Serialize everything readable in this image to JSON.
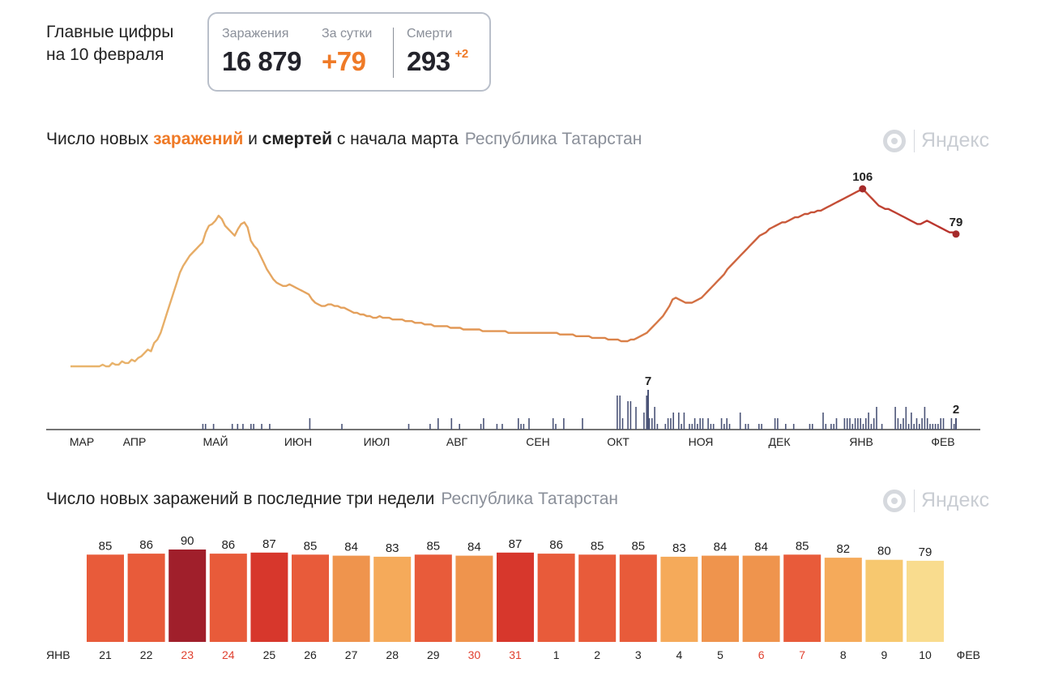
{
  "headline": {
    "line1": "Главные цифры",
    "line2": "на 10 февраля"
  },
  "stats": {
    "infections_label": "Заражения",
    "infections_value": "16 879",
    "daily_label": "За сутки",
    "daily_value": "+79",
    "deaths_label": "Смерти",
    "deaths_value": "293",
    "deaths_delta": "+2"
  },
  "chart1": {
    "title_part1": "Число новых ",
    "title_infections": "заражений",
    "title_part2": " и ",
    "title_deaths": "смертей",
    "title_part3": " с начала марта",
    "region": "Республика Татарстан",
    "logo_text": "Яндекс"
  },
  "chart2": {
    "title": "Число новых заражений в последние три недели",
    "region": "Республика Татарстан",
    "logo_text": "Яндекс"
  },
  "colors": {
    "accent_orange": "#ef7a27",
    "bar_dark_red": "#a01f2b",
    "bar_red": "#d7372c",
    "bar_orange_red": "#e85b3a",
    "bar_orange": "#ef944d",
    "bar_light_orange": "#f5aa5a",
    "bar_yellow": "#f7c86f",
    "bar_pale_yellow": "#f9dc8e",
    "line_early": "#e9b66e",
    "line_late": "#b8312c",
    "deaths_bars": "#4b5477",
    "weekend_text": "#e0402f"
  },
  "chart_data": [
    {
      "type": "line",
      "title": "Число новых заражений и смертей с начала марта",
      "series": [
        {
          "values": [
            0,
            0,
            0,
            0,
            0,
            0,
            0,
            0,
            0,
            0,
            1,
            0,
            0,
            2,
            1,
            1,
            3,
            2,
            2,
            4,
            3,
            5,
            6,
            8,
            10,
            9,
            14,
            16,
            20,
            26,
            32,
            38,
            44,
            50,
            56,
            60,
            63,
            66,
            68,
            70,
            72,
            74,
            80,
            84,
            85,
            87,
            90,
            88,
            84,
            82,
            80,
            78,
            82,
            85,
            86,
            83,
            75,
            72,
            70,
            66,
            62,
            58,
            55,
            52,
            50,
            49,
            48,
            48,
            49,
            48,
            47,
            46,
            45,
            44,
            43,
            40,
            38,
            37,
            36,
            36,
            37,
            37,
            36,
            36,
            35,
            35,
            34,
            33,
            32,
            32,
            31,
            31,
            30,
            30,
            29,
            29,
            30,
            29,
            29,
            29,
            28,
            28,
            28,
            28,
            27,
            27,
            27,
            26,
            26,
            26,
            25,
            25,
            25,
            24,
            24,
            24,
            24,
            24,
            23,
            23,
            23,
            23,
            22,
            22,
            22,
            22,
            22,
            22,
            21,
            21,
            21,
            21,
            21,
            21,
            21,
            21,
            20,
            20,
            20,
            20,
            20,
            20,
            20,
            20,
            20,
            20,
            20,
            20,
            20,
            20,
            20,
            20,
            19,
            19,
            19,
            19,
            19,
            18,
            18,
            18,
            18,
            18,
            17,
            17,
            17,
            17,
            17,
            16,
            16,
            16,
            16,
            15,
            15,
            15,
            16,
            16,
            17,
            18,
            19,
            20,
            22,
            24,
            26,
            28,
            30,
            33,
            36,
            40,
            41,
            40,
            39,
            38,
            38,
            38,
            39,
            40,
            41,
            43,
            45,
            47,
            49,
            51,
            53,
            55,
            58,
            60,
            62,
            64,
            66,
            68,
            70,
            72,
            74,
            76,
            78,
            79,
            80,
            82,
            83,
            84,
            85,
            86,
            86,
            87,
            88,
            89,
            89,
            90,
            91,
            91,
            92,
            92,
            93,
            93,
            94,
            95,
            96,
            97,
            98,
            99,
            100,
            101,
            102,
            103,
            104,
            105,
            106,
            104,
            102,
            100,
            98,
            96,
            95,
            94,
            94,
            93,
            92,
            91,
            90,
            89,
            88,
            87,
            86,
            85,
            85,
            86,
            87,
            86,
            85,
            84,
            83,
            82,
            81,
            80,
            80,
            79
          ]
        }
      ],
      "peak_label": "106",
      "last_label": "79",
      "deaths_peak_label": "7",
      "deaths_last_label": "2",
      "months": [
        "МАР",
        "АПР",
        "МАЙ",
        "ИЮН",
        "ИЮЛ",
        "АВГ",
        "СЕН",
        "ОКТ",
        "НОЯ",
        "ДЕК",
        "ЯНВ",
        "ФЕВ"
      ]
    },
    {
      "type": "bar",
      "title": "Число новых заражений в последние три недели",
      "categories": [
        "21",
        "22",
        "23",
        "24",
        "25",
        "26",
        "27",
        "28",
        "29",
        "30",
        "31",
        "1",
        "2",
        "3",
        "4",
        "5",
        "6",
        "7",
        "8",
        "9",
        "10"
      ],
      "values": [
        85,
        86,
        90,
        86,
        87,
        85,
        84,
        83,
        85,
        84,
        87,
        86,
        85,
        85,
        83,
        84,
        84,
        85,
        82,
        80,
        79
      ],
      "weekend": [
        false,
        false,
        true,
        true,
        false,
        false,
        false,
        false,
        false,
        true,
        true,
        false,
        false,
        false,
        false,
        false,
        true,
        true,
        false,
        false,
        false
      ],
      "x_start_label": "ЯНВ",
      "x_end_label": "ФЕВ"
    }
  ]
}
